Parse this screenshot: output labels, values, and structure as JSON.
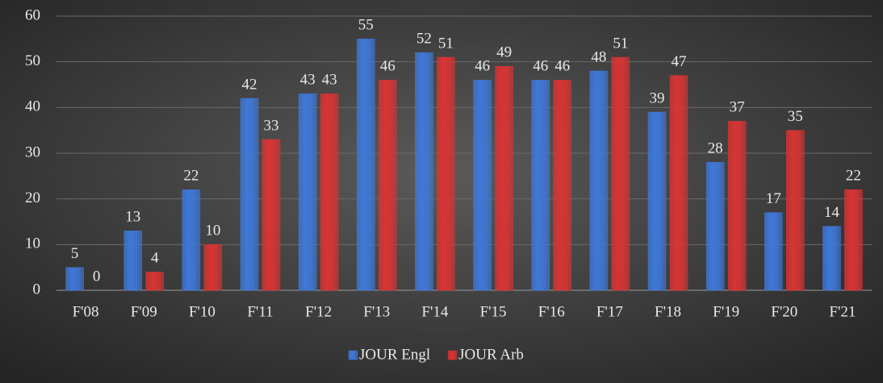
{
  "chart_data": {
    "type": "bar",
    "categories": [
      "F'08",
      "F'09",
      "F'10",
      "F'11",
      "F'12",
      "F'13",
      "F'14",
      "F'15",
      "F'16",
      "F'17",
      "F'18",
      "F'19",
      "F'20",
      "F'21"
    ],
    "series": [
      {
        "name": "JOUR Engl",
        "color": "#3f78d8",
        "values": [
          5,
          13,
          22,
          42,
          43,
          55,
          52,
          46,
          46,
          48,
          39,
          28,
          17,
          14
        ]
      },
      {
        "name": "JOUR Arb",
        "color": "#d83434",
        "values": [
          0,
          4,
          10,
          33,
          43,
          46,
          51,
          49,
          46,
          51,
          47,
          37,
          35,
          22
        ]
      }
    ],
    "ylim": [
      0,
      60
    ],
    "yticks": [
      0,
      10,
      20,
      30,
      40,
      50,
      60
    ],
    "grid": true,
    "legend": "bottom"
  }
}
